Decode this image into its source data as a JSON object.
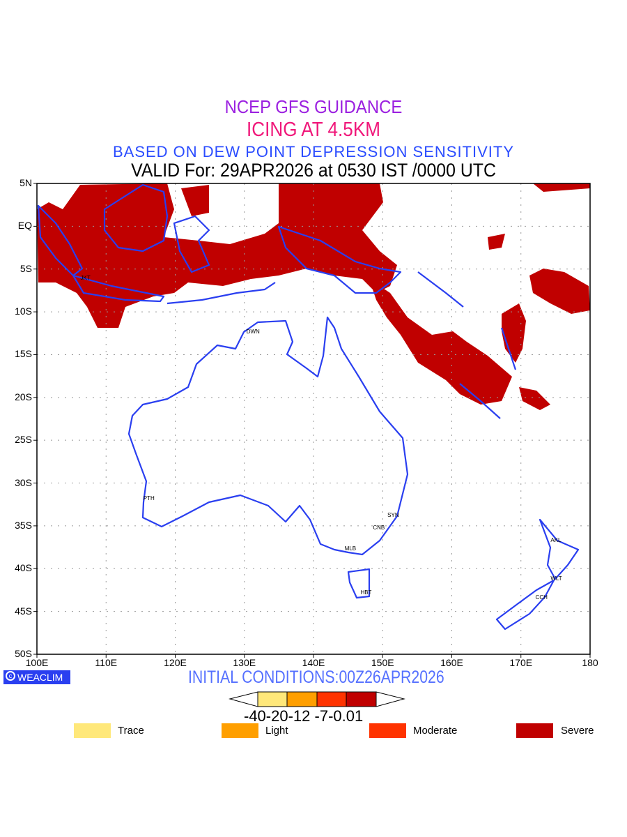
{
  "title": {
    "line1": "NCEP GFS GUIDANCE",
    "line2": "ICING AT 4.5KM",
    "line3": "BASED ON DEW POINT DEPRESSION SENSITIVITY",
    "line4": "VALID For: 29APR2026 at 0530 IST /0000 UTC"
  },
  "map": {
    "lat_labels": [
      "5N",
      "EQ",
      "5S",
      "10S",
      "15S",
      "20S",
      "25S",
      "30S",
      "35S",
      "40S",
      "45S",
      "50S"
    ],
    "lon_labels": [
      "100E",
      "110E",
      "120E",
      "130E",
      "140E",
      "150E",
      "160E",
      "170E",
      "180"
    ],
    "cities": [
      {
        "name": "JKT",
        "lon": 106.8,
        "lat": -6.2
      },
      {
        "name": "DWN",
        "lon": 130.8,
        "lat": -12.4
      },
      {
        "name": "PTH",
        "lon": 115.9,
        "lat": -31.9
      },
      {
        "name": "SYN",
        "lon": 151.2,
        "lat": -33.9
      },
      {
        "name": "CNB",
        "lon": 149.1,
        "lat": -35.3
      },
      {
        "name": "MLB",
        "lon": 145.0,
        "lat": -37.8
      },
      {
        "name": "HBT",
        "lon": 147.3,
        "lat": -42.9
      },
      {
        "name": "AKL",
        "lon": 174.8,
        "lat": -36.8
      },
      {
        "name": "WLT",
        "lon": 174.8,
        "lat": -41.3
      },
      {
        "name": "CCH",
        "lon": 172.6,
        "lat": -43.5
      }
    ],
    "coast_color": "#2a3ff0",
    "severe_color": "#c00000"
  },
  "footer": {
    "logo": "WEACLIM",
    "logo_icon": "copyright-icon",
    "initial": "INITIAL CONDITIONS:00Z26APR2026"
  },
  "colorbar": {
    "labels": "-40-20-12 -7-0.01",
    "colors": [
      "#ffe87a",
      "#ff9f00",
      "#ff3300",
      "#c00000"
    ]
  },
  "legend": [
    {
      "label": "Trace",
      "color": "#ffe87a"
    },
    {
      "label": "Light",
      "color": "#ff9f00"
    },
    {
      "label": "Moderate",
      "color": "#ff3300"
    },
    {
      "label": "Severe",
      "color": "#c00000"
    }
  ]
}
